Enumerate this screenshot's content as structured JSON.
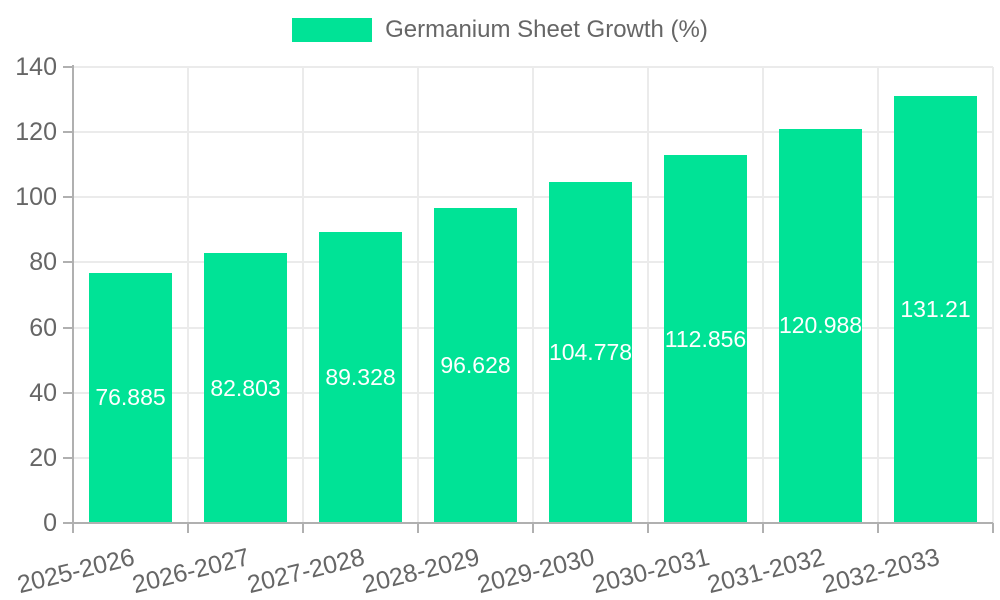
{
  "legend": {
    "label": "Germanium Sheet Growth (%)"
  },
  "chart_data": {
    "type": "bar",
    "title": "Germanium Sheet Growth (%)",
    "categories": [
      "2025-2026",
      "2026-2027",
      "2027-2028",
      "2028-2029",
      "2029-2030",
      "2030-2031",
      "2031-2032",
      "2032-2033"
    ],
    "values": [
      76.885,
      82.803,
      89.328,
      96.628,
      104.778,
      112.856,
      120.988,
      131.21
    ],
    "value_labels": [
      "76.885",
      "82.803",
      "89.328",
      "96.628",
      "104.778",
      "112.856",
      "120.988",
      "131.21"
    ],
    "xlabel": "",
    "ylabel": "",
    "ylim": [
      0,
      140
    ],
    "yticks": [
      0,
      20,
      40,
      60,
      80,
      100,
      120,
      140
    ],
    "grid": true,
    "legend_position": "top",
    "bar_color": "#00E396",
    "value_label_color": "#ffffff",
    "axis_text_color": "#666666",
    "axis_line_color": "#b0b0b0",
    "gridline_color": "#ebebeb",
    "background_color": "#ffffff"
  }
}
